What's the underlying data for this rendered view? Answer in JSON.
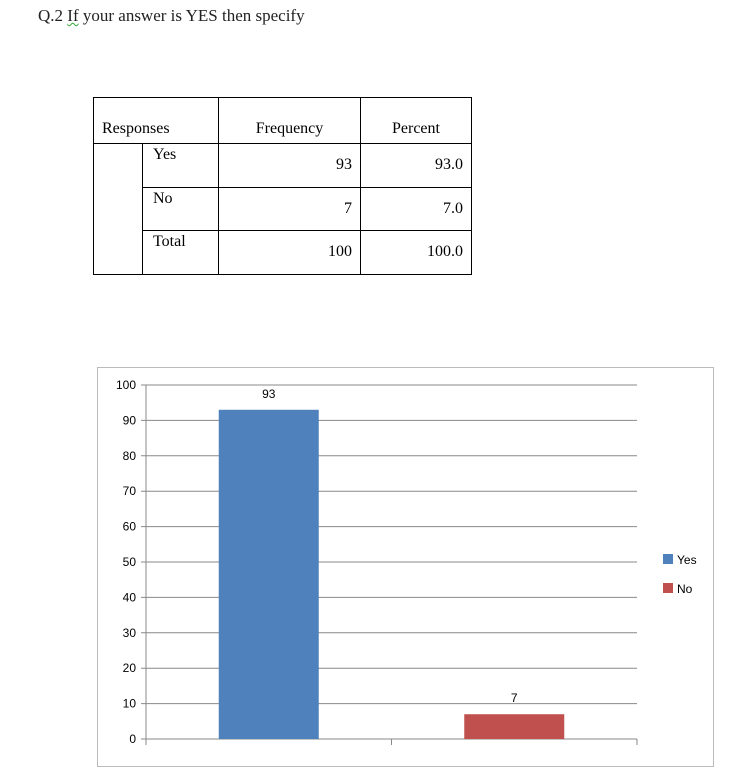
{
  "document": {
    "title_prefix": "Q.2 ",
    "title_word": "If",
    "title_rest": " your answer is YES then specify"
  },
  "table": {
    "headers": [
      "Responses",
      "Frequency",
      "Percent"
    ],
    "rows": [
      {
        "label": "Yes",
        "frequency": "93",
        "percent": "93.0"
      },
      {
        "label": "No",
        "frequency": "7",
        "percent": "7.0"
      },
      {
        "label": "Total",
        "frequency": "100",
        "percent": "100.0"
      }
    ]
  },
  "chart_data": {
    "type": "bar",
    "categories": [
      "Yes",
      "No"
    ],
    "series": [
      {
        "name": "Yes",
        "values": [
          93,
          null
        ],
        "color": "#4F81BD"
      },
      {
        "name": "No",
        "values": [
          null,
          7
        ],
        "color": "#C0504D"
      }
    ],
    "data_labels": [
      "93",
      "7"
    ],
    "yticks": [
      "0",
      "10",
      "20",
      "30",
      "40",
      "50",
      "60",
      "70",
      "80",
      "90",
      "100"
    ],
    "ylim": [
      0,
      100
    ],
    "grid": true,
    "legend": "right"
  }
}
